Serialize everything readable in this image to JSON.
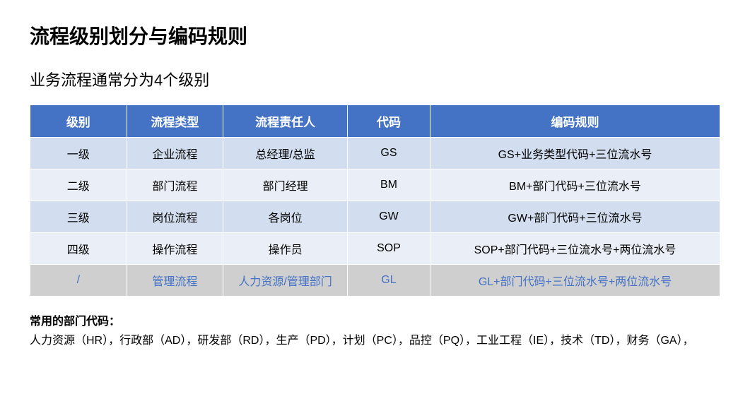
{
  "title": "流程级别划分与编码规则",
  "subtitle": "业务流程通常分为4个级别",
  "table": {
    "columns": [
      "级别",
      "流程类型",
      "流程责任人",
      "代码",
      "编码规则"
    ],
    "column_widths": [
      "14%",
      "14%",
      "18%",
      "12%",
      "42%"
    ],
    "header_bg": "#4472c4",
    "header_text_color": "#ffffff",
    "row_bg_even": "#d2deef",
    "row_bg_odd": "#eaeff7",
    "row_bg_special": "#cfcfcf",
    "row_text_special": "#4472c4",
    "rows": [
      {
        "cells": [
          "一级",
          "企业流程",
          "总经理/总监",
          "GS",
          "GS+业务类型代码+三位流水号"
        ],
        "style": "even"
      },
      {
        "cells": [
          "二级",
          "部门流程",
          "部门经理",
          "BM",
          "BM+部门代码+三位流水号"
        ],
        "style": "odd"
      },
      {
        "cells": [
          "三级",
          "岗位流程",
          "各岗位",
          "GW",
          "GW+部门代码+三位流水号"
        ],
        "style": "even"
      },
      {
        "cells": [
          "四级",
          "操作流程",
          "操作员",
          "SOP",
          "SOP+部门代码+三位流水号+两位流水号"
        ],
        "style": "odd"
      },
      {
        "cells": [
          "/",
          "管理流程",
          "人力资源/管理部门",
          "GL",
          "GL+部门代码+三位流水号+两位流水号"
        ],
        "style": "special"
      }
    ]
  },
  "footer": {
    "title": "常用的部门代码：",
    "body": "人力资源（HR），行政部（AD），研发部（RD），生产（PD），计划（PC），品控（PQ），工业工程（IE），技术（TD），财务（GA），"
  }
}
